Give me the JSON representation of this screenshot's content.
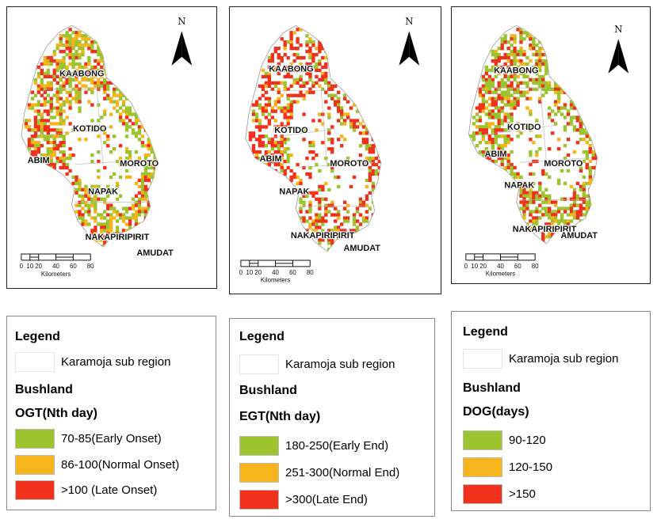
{
  "colors": {
    "early": "#9cc42e",
    "normal": "#f6b51d",
    "late": "#f0321c",
    "white": "#ffffff"
  },
  "compass_label": "N",
  "scale": {
    "ticks": [
      "0",
      "10",
      "20",
      "40",
      "60",
      "80"
    ],
    "unit": "Kilometers"
  },
  "places": [
    "KAABONG",
    "KOTIDO",
    "ABIM",
    "MOROTO",
    "NAPAK",
    "NAKAPIRIPIRIT",
    "AMUDAT"
  ],
  "maps": [
    {
      "id": "ogt",
      "variable": "OGT"
    },
    {
      "id": "egt",
      "variable": "EGT"
    },
    {
      "id": "dog",
      "variable": "DOG"
    }
  ],
  "legends": [
    {
      "title": "Legend",
      "region": "Karamoja sub region",
      "cover": "Bushland",
      "var_title": "OGT(Nth day)",
      "classes": [
        "70-85(Early Onset)",
        "86-100(Normal Onset)",
        ">100 (Late Onset)"
      ]
    },
    {
      "title": "Legend",
      "region": "Karamoja sub region",
      "cover": "Bushland",
      "var_title": "EGT(Nth day)",
      "classes": [
        "180-250(Early End)",
        "251-300(Normal End)",
        ">300(Late End)"
      ]
    },
    {
      "title": "Legend",
      "region": "Karamoja sub region",
      "cover": "Bushland",
      "var_title": "DOG(days)",
      "classes": [
        "90-120",
        "120-150",
        ">150"
      ]
    }
  ]
}
